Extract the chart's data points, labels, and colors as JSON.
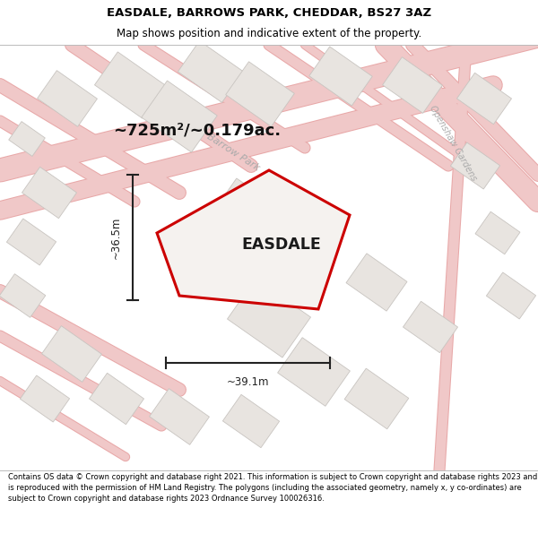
{
  "title": "EASDALE, BARROWS PARK, CHEDDAR, BS27 3AZ",
  "subtitle": "Map shows position and indicative extent of the property.",
  "area_text": "~725m²/~0.179ac.",
  "property_label": "EASDALE",
  "dim_width": "~39.1m",
  "dim_height": "~36.5m",
  "footer": "Contains OS data © Crown copyright and database right 2021. This information is subject to Crown copyright and database rights 2023 and is reproduced with the permission of HM Land Registry. The polygons (including the associated geometry, namely x, y co-ordinates) are subject to Crown copyright and database rights 2023 Ordnance Survey 100026316.",
  "bg_color": "#f7f5f2",
  "road_color": "#f0c8c8",
  "road_outline_color": "#e8a8a8",
  "property_outline_color": "#cc0000",
  "building_fill": "#e8e4e0",
  "building_edge": "#c8c4c0",
  "dim_color": "#222222",
  "title_color": "#000000",
  "footer_color": "#000000",
  "road_label_color": "#aaaaaa",
  "area_text_color": "#111111"
}
